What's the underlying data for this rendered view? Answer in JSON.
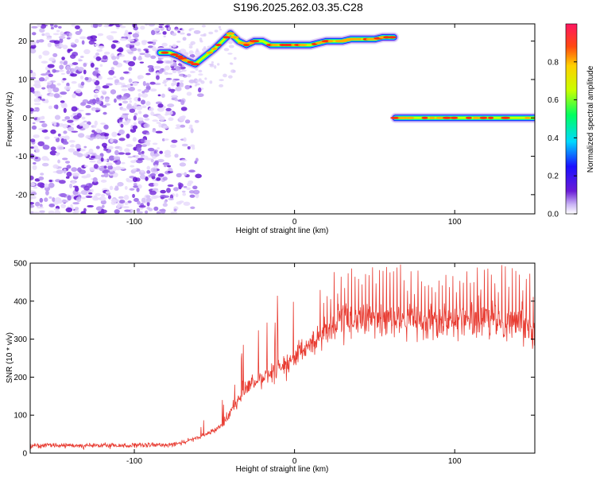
{
  "title": "S196.2025.262.03.35.C28",
  "chart_data": [
    {
      "type": "heatmap",
      "xlabel": "Height of straight line (km)",
      "ylabel": "Frequency (Hz)",
      "xlim": [
        -165,
        150
      ],
      "ylim": [
        -25,
        24.5
      ],
      "xticks": [
        -100,
        0,
        100
      ],
      "yticks": [
        -20,
        -10,
        0,
        10,
        20
      ],
      "colorbar": {
        "label": "Normalized spectral amplitude",
        "range": [
          0,
          1
        ],
        "ticks": [
          0.0,
          0.2,
          0.4,
          0.6,
          0.8
        ]
      },
      "ridges": [
        {
          "x": [
            -84,
            -78,
            -72,
            -68,
            -62,
            -56,
            -50,
            -45,
            -40,
            -35,
            -30,
            -25,
            -20,
            -15,
            -10,
            -5,
            0,
            5,
            10,
            15,
            20,
            25,
            30,
            35,
            40,
            45,
            50,
            55,
            60,
            62
          ],
          "y": [
            17,
            17,
            16,
            15,
            14,
            16,
            18,
            20,
            22,
            20,
            19,
            20,
            20,
            19,
            19,
            19,
            19,
            19,
            19,
            19.5,
            20,
            20,
            20,
            20.5,
            20.5,
            20.5,
            20.5,
            21,
            21,
            21
          ]
        },
        {
          "x": [
            63,
            150
          ],
          "y": [
            0,
            0
          ]
        }
      ],
      "noise_region_x": [
        -165,
        -70
      ]
    },
    {
      "type": "line",
      "xlabel": "Height of straight line (km)",
      "ylabel": "SNR (10 * v/v)",
      "xlim": [
        -165,
        150
      ],
      "ylim": [
        0,
        500
      ],
      "xticks": [
        -100,
        0,
        100
      ],
      "yticks": [
        0,
        100,
        200,
        300,
        400,
        500
      ],
      "series": [
        {
          "color": "#e83c32",
          "x": [
            -165,
            -140,
            -120,
            -100,
            -80,
            -70,
            -60,
            -50,
            -45,
            -40,
            -35,
            -30,
            -25,
            -20,
            -10,
            0,
            5,
            10,
            15,
            20,
            25,
            30,
            40,
            60,
            80,
            100,
            120,
            140,
            150
          ],
          "y": [
            20,
            20,
            20,
            20,
            22,
            28,
            40,
            60,
            75,
            110,
            140,
            170,
            185,
            200,
            225,
            245,
            265,
            290,
            305,
            325,
            335,
            345,
            350,
            350,
            348,
            350,
            348,
            345,
            330
          ]
        }
      ]
    }
  ]
}
